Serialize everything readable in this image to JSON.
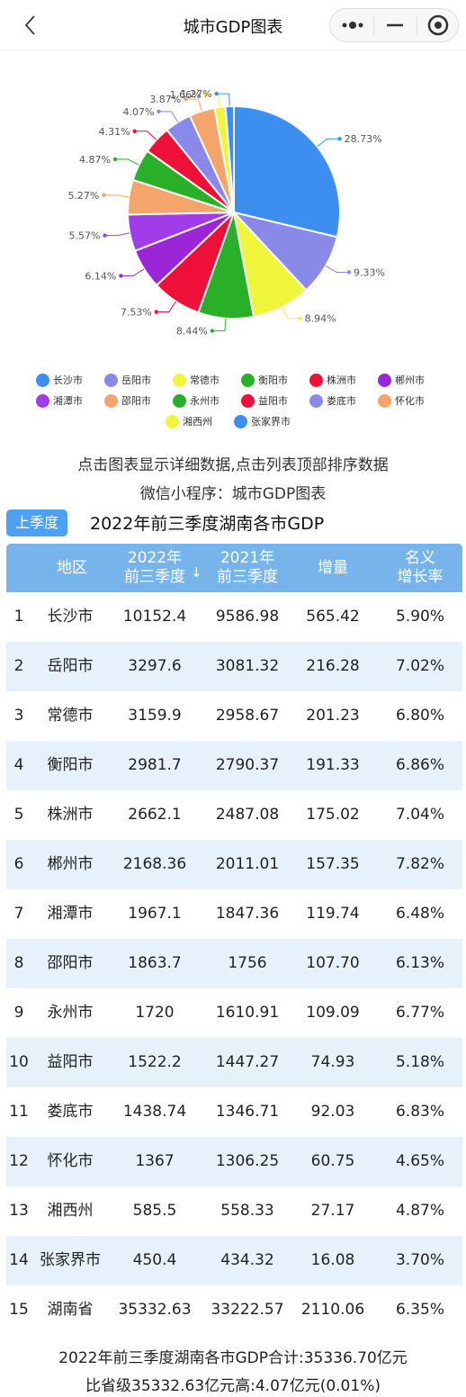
{
  "header": {
    "title": "城市GDP图表"
  },
  "colors": {
    "长沙市": "#3c8ff0",
    "岳阳市": "#8889e8",
    "常德市": "#eef53a",
    "衡阳市": "#2ab028",
    "株洲市": "#ee1038",
    "郴州市": "#9a26d8",
    "湘潭市": "#a23ce8",
    "邵阳市": "#f4a56c",
    "永州市": "#2ab028",
    "益阳市": "#ee1038",
    "娄底市": "#8889e8",
    "怀化市": "#f4a56c",
    "湘西州": "#eef53a",
    "张家界市": "#3c8ff0"
  },
  "chart_data": {
    "type": "pie",
    "title": "",
    "slices": [
      {
        "name": "长沙市",
        "value": 10152.4,
        "label": "28.73%"
      },
      {
        "name": "岳阳市",
        "value": 3297.6,
        "label": "9.33%"
      },
      {
        "name": "常德市",
        "value": 3159.9,
        "label": "8.94%"
      },
      {
        "name": "衡阳市",
        "value": 2981.7,
        "label": "8.44%"
      },
      {
        "name": "株洲市",
        "value": 2662.1,
        "label": "7.53%"
      },
      {
        "name": "郴州市",
        "value": 2168.36,
        "label": "6.14%"
      },
      {
        "name": "湘潭市",
        "value": 1967.1,
        "label": "5.57%"
      },
      {
        "name": "邵阳市",
        "value": 1863.7,
        "label": "5.27%"
      },
      {
        "name": "永州市",
        "value": 1720,
        "label": "4.87%"
      },
      {
        "name": "益阳市",
        "value": 1522.2,
        "label": "4.31%"
      },
      {
        "name": "娄底市",
        "value": 1438.74,
        "label": "4.07%"
      },
      {
        "name": "怀化市",
        "value": 1367,
        "label": "3.87%"
      },
      {
        "name": "湘西州",
        "value": 585.5,
        "label": "1.66%"
      },
      {
        "name": "张家界市",
        "value": 450.4,
        "label": "1.27%"
      }
    ],
    "legend": [
      "长沙市",
      "岳阳市",
      "常德市",
      "衡阳市",
      "株洲市",
      "郴州市",
      "湘潭市",
      "邵阳市",
      "永州市",
      "益阳市",
      "娄底市",
      "怀化市",
      "湘西州",
      "张家界市"
    ],
    "legend_position": "bottom"
  },
  "hints": {
    "line1": "点击图表显示详细数据,点击列表顶部排序数据",
    "line2": "微信小程序：城市GDP图表"
  },
  "table": {
    "season_button": "上季度",
    "title": "2022年前三季度湖南各市GDP",
    "headers": {
      "region": "地区",
      "y2022_line1": "2022年",
      "y2022_line2": "前三季度",
      "sort_indicator": "↓",
      "y2021_line1": "2021年",
      "y2021_line2": "前三季度",
      "increase": "增量",
      "rate_line1": "名义",
      "rate_line2": "增长率"
    },
    "rows": [
      {
        "rank": "1",
        "region": "长沙市",
        "y2022": "10152.4",
        "y2021": "9586.98",
        "increase": "565.42",
        "rate": "5.90%"
      },
      {
        "rank": "2",
        "region": "岳阳市",
        "y2022": "3297.6",
        "y2021": "3081.32",
        "increase": "216.28",
        "rate": "7.02%"
      },
      {
        "rank": "3",
        "region": "常德市",
        "y2022": "3159.9",
        "y2021": "2958.67",
        "increase": "201.23",
        "rate": "6.80%"
      },
      {
        "rank": "4",
        "region": "衡阳市",
        "y2022": "2981.7",
        "y2021": "2790.37",
        "increase": "191.33",
        "rate": "6.86%"
      },
      {
        "rank": "5",
        "region": "株洲市",
        "y2022": "2662.1",
        "y2021": "2487.08",
        "increase": "175.02",
        "rate": "7.04%"
      },
      {
        "rank": "6",
        "region": "郴州市",
        "y2022": "2168.36",
        "y2021": "2011.01",
        "increase": "157.35",
        "rate": "7.82%"
      },
      {
        "rank": "7",
        "region": "湘潭市",
        "y2022": "1967.1",
        "y2021": "1847.36",
        "increase": "119.74",
        "rate": "6.48%"
      },
      {
        "rank": "8",
        "region": "邵阳市",
        "y2022": "1863.7",
        "y2021": "1756",
        "increase": "107.70",
        "rate": "6.13%"
      },
      {
        "rank": "9",
        "region": "永州市",
        "y2022": "1720",
        "y2021": "1610.91",
        "increase": "109.09",
        "rate": "6.77%"
      },
      {
        "rank": "10",
        "region": "益阳市",
        "y2022": "1522.2",
        "y2021": "1447.27",
        "increase": "74.93",
        "rate": "5.18%"
      },
      {
        "rank": "11",
        "region": "娄底市",
        "y2022": "1438.74",
        "y2021": "1346.71",
        "increase": "92.03",
        "rate": "6.83%"
      },
      {
        "rank": "12",
        "region": "怀化市",
        "y2022": "1367",
        "y2021": "1306.25",
        "increase": "60.75",
        "rate": "4.65%"
      },
      {
        "rank": "13",
        "region": "湘西州",
        "y2022": "585.5",
        "y2021": "558.33",
        "increase": "27.17",
        "rate": "4.87%"
      },
      {
        "rank": "14",
        "region": "张家界市",
        "y2022": "450.4",
        "y2021": "434.32",
        "increase": "16.08",
        "rate": "3.70%"
      },
      {
        "rank": "15",
        "region": "湖南省",
        "y2022": "35332.63",
        "y2021": "33222.57",
        "increase": "2110.06",
        "rate": "6.35%"
      }
    ]
  },
  "footer": {
    "line1": "2022年前三季度湖南各市GDP合计:35336.70亿元",
    "line2": "比省级35332.63亿元高:4.07亿元(0.01%)"
  }
}
